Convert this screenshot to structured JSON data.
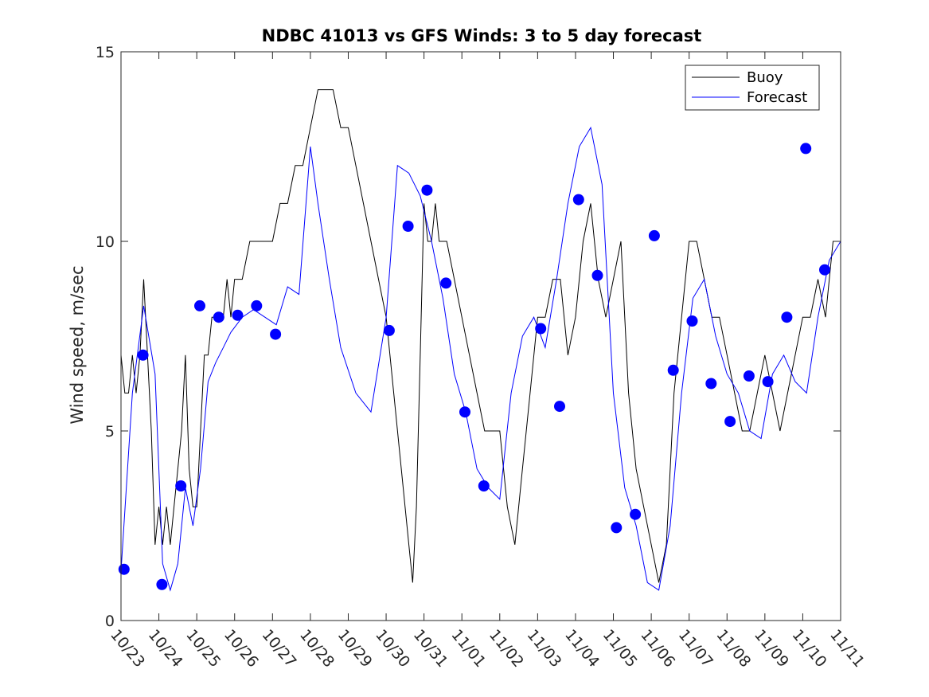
{
  "chart_data": {
    "type": "line",
    "title": "NDBC 41013 vs GFS Winds: 3 to 5 day forecast",
    "xlabel": "",
    "ylabel": "Wind speed, m/sec",
    "ylim": [
      0,
      15
    ],
    "yticks": [
      "0",
      "5",
      "10",
      "15"
    ],
    "xlim": [
      0,
      19
    ],
    "xticks": [
      "10/23",
      "10/24",
      "10/25",
      "10/26",
      "10/27",
      "10/28",
      "10/29",
      "10/30",
      "10/31",
      "11/01",
      "11/02",
      "11/03",
      "11/04",
      "11/05",
      "11/06",
      "11/07",
      "11/08",
      "11/09",
      "11/10",
      "11/11"
    ],
    "legend": {
      "position": "top-right",
      "entries": [
        {
          "label": "Buoy",
          "color": "#000000"
        },
        {
          "label": "Forecast",
          "color": "#0000ff"
        }
      ]
    },
    "series": [
      {
        "name": "Buoy",
        "color": "#000000",
        "x": [
          0,
          0.1,
          0.2,
          0.3,
          0.4,
          0.5,
          0.6,
          0.7,
          0.8,
          0.9,
          1.0,
          1.1,
          1.2,
          1.3,
          1.4,
          1.5,
          1.6,
          1.7,
          1.8,
          1.9,
          2.0,
          2.1,
          2.2,
          2.3,
          2.4,
          2.5,
          2.6,
          2.7,
          2.8,
          2.9,
          3.0,
          3.2,
          3.4,
          3.6,
          3.8,
          4.0,
          4.2,
          4.4,
          4.6,
          4.8,
          5.0,
          5.2,
          5.4,
          5.6,
          5.8,
          6.0,
          6.2,
          6.4,
          6.6,
          6.8,
          7.0,
          7.2,
          7.4,
          7.6,
          7.7,
          7.8,
          7.9,
          8.0,
          8.1,
          8.2,
          8.3,
          8.4,
          8.6,
          8.8,
          9.0,
          9.2,
          9.4,
          9.6,
          9.8,
          10.0,
          10.2,
          10.4,
          10.6,
          10.8,
          11.0,
          11.2,
          11.4,
          11.6,
          11.8,
          12.0,
          12.2,
          12.4,
          12.6,
          12.8,
          13.0,
          13.2,
          13.4,
          13.6,
          13.8,
          14.0,
          14.2,
          14.4,
          14.6,
          14.8,
          15.0,
          15.2,
          15.4,
          15.6,
          15.8,
          16.0,
          16.2,
          16.4,
          16.6,
          16.8,
          17.0,
          17.2,
          17.4,
          17.6,
          17.8,
          18.0,
          18.2,
          18.4,
          18.6,
          18.8,
          19.0
        ],
        "values": [
          7,
          6,
          6,
          7,
          6,
          7,
          9,
          7,
          5,
          2,
          3,
          2,
          3,
          2,
          3,
          4,
          5,
          7,
          4,
          3,
          3,
          5,
          7,
          7,
          8,
          8,
          8,
          8,
          9,
          8,
          9,
          9,
          10,
          10,
          10,
          10,
          11,
          11,
          12,
          12,
          13,
          14,
          14,
          14,
          13,
          13,
          12,
          11,
          10,
          9,
          8,
          6,
          4,
          2,
          1,
          3,
          7,
          11,
          10,
          10,
          11,
          10,
          10,
          9,
          8,
          7,
          6,
          5,
          5,
          5,
          3,
          2,
          4,
          6,
          8,
          8,
          9,
          9,
          7,
          8,
          10,
          11,
          9,
          8,
          9,
          10,
          6,
          4,
          3,
          2,
          1,
          2,
          6,
          8,
          10,
          10,
          9,
          8,
          8,
          7,
          6,
          5,
          5,
          6,
          7,
          6,
          5,
          6,
          7,
          8,
          8,
          9,
          8,
          10,
          10
        ]
      },
      {
        "name": "Forecast",
        "color": "#0000ff",
        "x": [
          0,
          0.3,
          0.6,
          0.9,
          1.1,
          1.3,
          1.5,
          1.7,
          1.9,
          2.1,
          2.3,
          2.5,
          2.7,
          2.9,
          3.2,
          3.5,
          3.8,
          4.1,
          4.4,
          4.7,
          5.0,
          5.2,
          5.5,
          5.8,
          6.2,
          6.6,
          7.0,
          7.3,
          7.6,
          7.9,
          8.2,
          8.5,
          8.8,
          9.1,
          9.4,
          9.7,
          10.0,
          10.3,
          10.6,
          10.9,
          11.2,
          11.5,
          11.8,
          12.1,
          12.4,
          12.7,
          13.0,
          13.3,
          13.6,
          13.9,
          14.2,
          14.5,
          14.8,
          15.1,
          15.4,
          15.7,
          16.0,
          16.3,
          16.6,
          16.9,
          17.2,
          17.5,
          17.8,
          18.1,
          18.4,
          18.7,
          19.0
        ],
        "values": [
          1.3,
          6.0,
          8.3,
          6.5,
          1.5,
          0.8,
          1.5,
          3.5,
          2.5,
          4.0,
          6.3,
          6.8,
          7.2,
          7.6,
          8.0,
          8.2,
          8.0,
          7.8,
          8.8,
          8.6,
          12.5,
          11.0,
          9.0,
          7.2,
          6.0,
          5.5,
          8.0,
          12.0,
          11.8,
          11.2,
          10.0,
          8.5,
          6.5,
          5.5,
          4.0,
          3.5,
          3.2,
          6.0,
          7.5,
          8.0,
          7.2,
          9.0,
          11.0,
          12.5,
          13.0,
          11.5,
          6.0,
          3.5,
          2.5,
          1.0,
          0.8,
          2.5,
          6.0,
          8.5,
          9.0,
          7.5,
          6.5,
          6.0,
          5.0,
          4.8,
          6.5,
          7.0,
          6.3,
          6.0,
          8.0,
          9.5,
          10.0
        ]
      }
    ],
    "markers": {
      "name": "Forecast verification points",
      "color": "#0000ff",
      "x": [
        0.08,
        0.58,
        1.08,
        1.58,
        2.08,
        2.58,
        3.08,
        3.58,
        4.08,
        7.08,
        7.58,
        8.08,
        8.58,
        9.08,
        9.58,
        11.08,
        11.58,
        12.08,
        12.58,
        13.08,
        13.58,
        14.08,
        14.58,
        15.08,
        15.58,
        16.08,
        16.58,
        17.08,
        17.58,
        18.08,
        18.58
      ],
      "values": [
        1.35,
        7.0,
        0.95,
        3.55,
        8.3,
        8.0,
        8.05,
        8.3,
        7.55,
        7.65,
        10.4,
        11.35,
        8.9,
        5.5,
        3.55,
        7.7,
        5.65,
        11.1,
        9.1,
        2.45,
        2.8,
        10.15,
        6.6,
        7.9,
        6.25,
        5.25,
        6.45,
        6.3,
        8.0,
        12.45,
        9.25
      ]
    }
  }
}
